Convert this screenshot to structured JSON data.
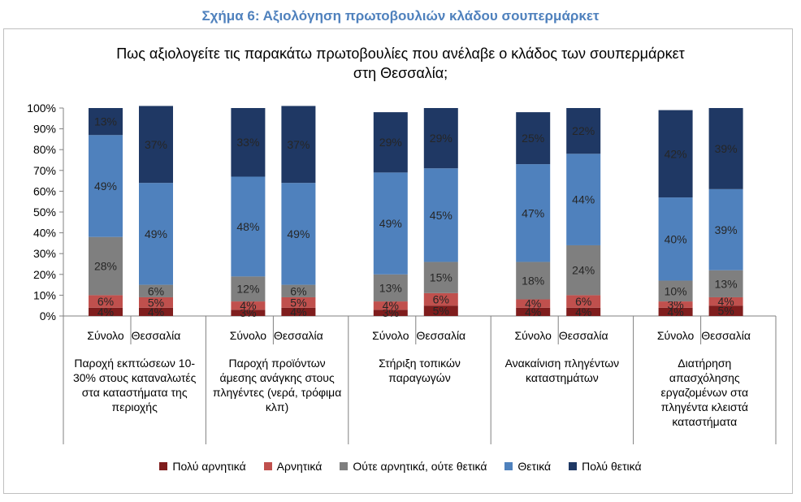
{
  "caption": "Σχήμα 6: Αξιολόγηση πρωτοβουλιών κλάδου σουπερμάρκετ",
  "chart_data": {
    "type": "bar",
    "stacked": true,
    "title_line1": "Πως αξιολογείτε τις παρακάτω πρωτοβουλίες που ανέλαβε ο κλάδος των σουπερμάρκετ",
    "title_line2": "στη Θεσσαλία;",
    "ylim": [
      0,
      100
    ],
    "yticks": [
      "0%",
      "10%",
      "20%",
      "30%",
      "40%",
      "50%",
      "60%",
      "70%",
      "80%",
      "90%",
      "100%"
    ],
    "groups": [
      {
        "label": "Παροχή εκπτώσεων 10-30% στους καταναλωτές στα καταστήματα της περιοχής",
        "label_lines": [
          "Παροχή εκπτώσεων 10-",
          "30% στους καταναλωτές",
          "στα καταστήματα της",
          "περιοχής"
        ]
      },
      {
        "label": "Παροχή προϊόντων άμεσης ανάγκης στους πληγέντες (νερά, τρόφιμα κλπ)",
        "label_lines": [
          "Παροχή προϊόντων",
          "άμεσης ανάγκης στους",
          "πληγέντες (νερά, τρόφιμα",
          "κλπ)"
        ]
      },
      {
        "label": "Στήριξη τοπικών παραγωγών",
        "label_lines": [
          "Στήριξη τοπικών",
          "παραγωγών"
        ]
      },
      {
        "label": "Ανακαίνιση πληγέντων καταστημάτων",
        "label_lines": [
          "Ανακαίνιση πληγέντων",
          "καταστημάτων"
        ]
      },
      {
        "label": "Διατήρηση απασχόλησης εργαζομένων στα πληγέντα κλειστά καταστήματα",
        "label_lines": [
          "Διατήρηση",
          "απασχόλησης",
          "εργαζομένων στα",
          "πληγέντα κλειστά",
          "καταστήματα"
        ]
      }
    ],
    "bar_labels": [
      "Σύνολο",
      "Θεσσαλία"
    ],
    "series": [
      {
        "name": "Πολύ αρνητικά",
        "color": "#7f1d1d",
        "values": [
          [
            4,
            4
          ],
          [
            3,
            4
          ],
          [
            3,
            5
          ],
          [
            4,
            4
          ],
          [
            4,
            5
          ]
        ],
        "labels": [
          [
            "4%",
            "4%"
          ],
          [
            "3%",
            "4%"
          ],
          [
            "3%",
            "5%"
          ],
          [
            "4%",
            "4%"
          ],
          [
            "4%",
            "5%"
          ]
        ]
      },
      {
        "name": "Αρνητικά",
        "color": "#c0504d",
        "values": [
          [
            6,
            5
          ],
          [
            4,
            5
          ],
          [
            4,
            6
          ],
          [
            4,
            6
          ],
          [
            3,
            4
          ]
        ],
        "labels": [
          [
            "6%",
            "5%"
          ],
          [
            "4%",
            "5%"
          ],
          [
            "4%",
            "6%"
          ],
          [
            "4%",
            "6%"
          ],
          [
            "3%",
            "4%"
          ]
        ]
      },
      {
        "name": "Ούτε αρνητικά, ούτε θετικά",
        "color": "#7f7f7f",
        "values": [
          [
            28,
            6
          ],
          [
            12,
            6
          ],
          [
            13,
            15
          ],
          [
            18,
            24
          ],
          [
            10,
            13
          ]
        ],
        "labels": [
          [
            "28%",
            "6%"
          ],
          [
            "12%",
            "6%"
          ],
          [
            "13%",
            "15%"
          ],
          [
            "18%",
            "24%"
          ],
          [
            "10%",
            "13%"
          ]
        ]
      },
      {
        "name": "Θετικά",
        "color": "#4f81bd",
        "values": [
          [
            49,
            49
          ],
          [
            48,
            49
          ],
          [
            49,
            45
          ],
          [
            47,
            44
          ],
          [
            40,
            39
          ]
        ],
        "labels": [
          [
            "49%",
            "49%"
          ],
          [
            "48%",
            "49%"
          ],
          [
            "49%",
            "45%"
          ],
          [
            "47%",
            "44%"
          ],
          [
            "40%",
            "39%"
          ]
        ]
      },
      {
        "name": "Πολύ θετικά",
        "color": "#1f3864",
        "values": [
          [
            13,
            37
          ],
          [
            33,
            37
          ],
          [
            29,
            29
          ],
          [
            25,
            22
          ],
          [
            42,
            39
          ]
        ],
        "labels": [
          [
            "13%",
            "37%"
          ],
          [
            "33%",
            "37%"
          ],
          [
            "29%",
            "29%"
          ],
          [
            "25%",
            "22%"
          ],
          [
            "42%",
            "39%"
          ]
        ]
      }
    ]
  }
}
